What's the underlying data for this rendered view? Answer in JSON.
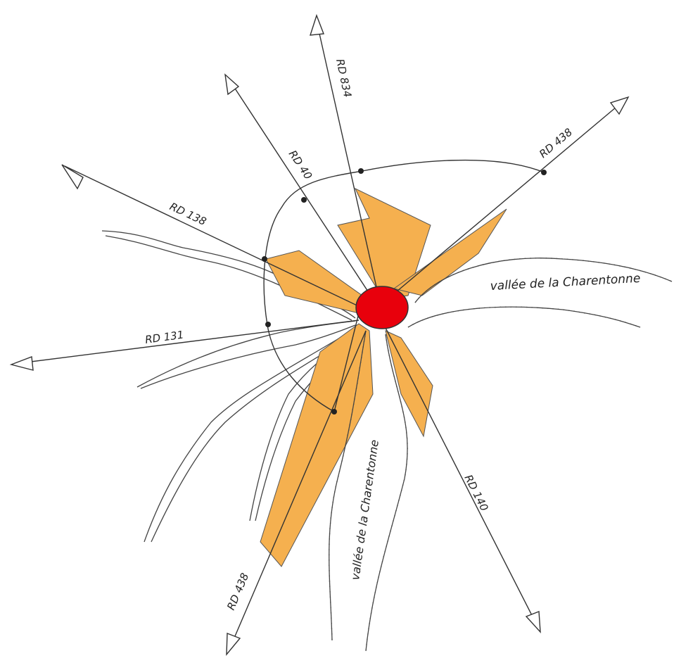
{
  "roads": [
    {
      "label": "RD 834"
    },
    {
      "label": "RD 40"
    },
    {
      "label": "RD 438"
    },
    {
      "label": "RD 138"
    },
    {
      "label": "RD 131"
    },
    {
      "label": "RD 438"
    },
    {
      "label": "RD 140"
    }
  ],
  "valleys": [
    {
      "label": "vallée de la Charentonne"
    },
    {
      "label": "vallée de la Charentonne"
    }
  ]
}
